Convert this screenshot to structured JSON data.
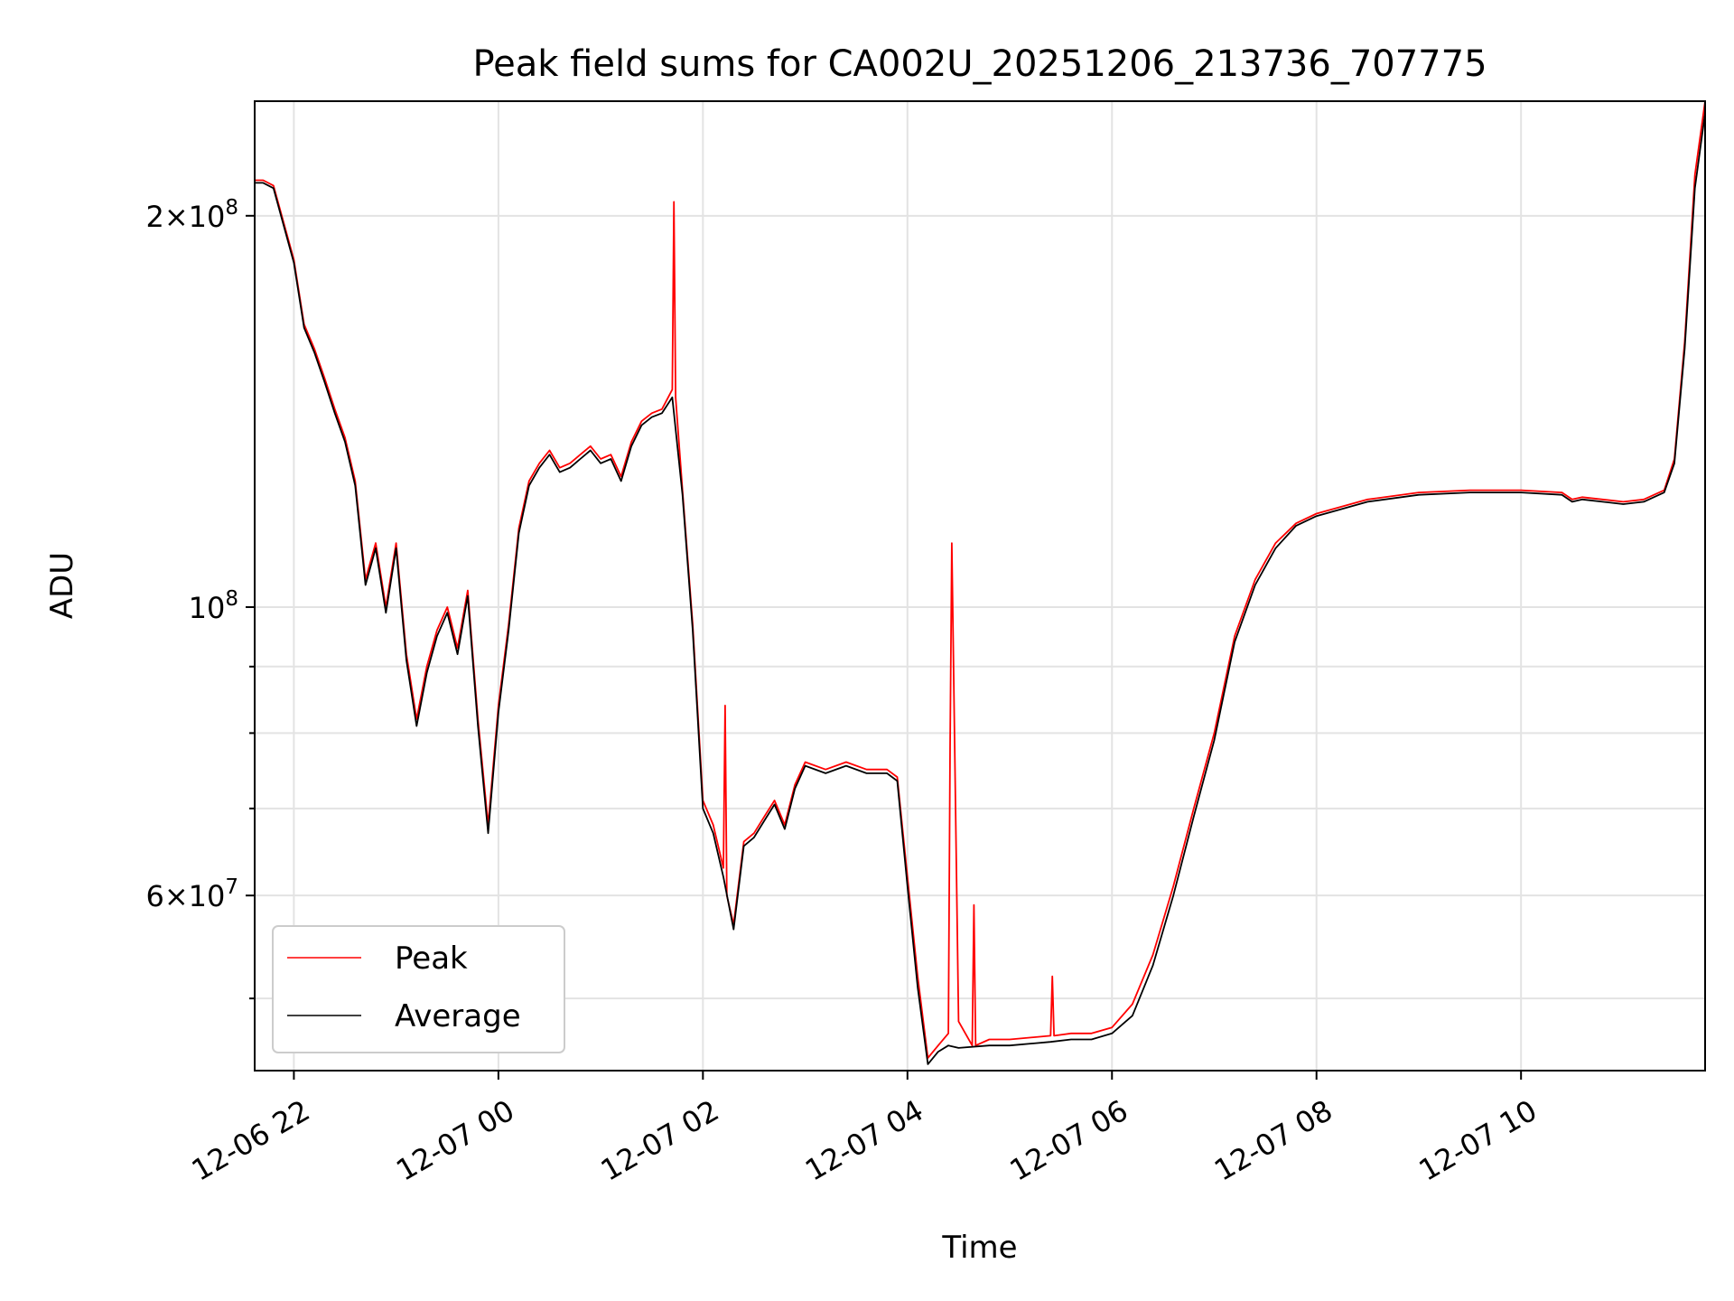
{
  "chart_data": {
    "type": "line",
    "title": "Peak field sums for CA002U_20251206_213736_707775",
    "xlabel": "Time",
    "ylabel": "ADU",
    "x_scale": "time",
    "y_scale": "log",
    "xlim": [
      "2025-12-06 21:37",
      "2025-12-07 11:48"
    ],
    "ylim": [
      44000000,
      245000000
    ],
    "x_ticks": [
      {
        "value": "2025-12-06 22:00",
        "label": "12-06 22"
      },
      {
        "value": "2025-12-07 00:00",
        "label": "12-07 00"
      },
      {
        "value": "2025-12-07 02:00",
        "label": "12-07 02"
      },
      {
        "value": "2025-12-07 04:00",
        "label": "12-07 04"
      },
      {
        "value": "2025-12-07 06:00",
        "label": "12-07 06"
      },
      {
        "value": "2025-12-07 08:00",
        "label": "12-07 08"
      },
      {
        "value": "2025-12-07 10:00",
        "label": "12-07 10"
      }
    ],
    "y_ticks_major": [
      {
        "value": 200000000,
        "base": "2",
        "exp": "8",
        "times": true
      },
      {
        "value": 100000000,
        "base": "10",
        "exp": "8",
        "times": false
      },
      {
        "value": 60000000,
        "base": "6",
        "exp": "7",
        "times": true
      }
    ],
    "y_ticks_minor": [
      50000000,
      70000000,
      80000000,
      90000000
    ],
    "grid": true,
    "legend_position": "lower-left",
    "series": [
      {
        "name": "Peak",
        "color": "#ff0000",
        "x": [
          "2025-12-06 21:37",
          "2025-12-06 21:42",
          "2025-12-06 21:48",
          "2025-12-06 22:00",
          "2025-12-06 22:06",
          "2025-12-06 22:12",
          "2025-12-06 22:18",
          "2025-12-06 22:24",
          "2025-12-06 22:30",
          "2025-12-06 22:36",
          "2025-12-06 22:42",
          "2025-12-06 22:48",
          "2025-12-06 22:54",
          "2025-12-06 23:00",
          "2025-12-06 23:06",
          "2025-12-06 23:12",
          "2025-12-06 23:18",
          "2025-12-06 23:24",
          "2025-12-06 23:30",
          "2025-12-06 23:36",
          "2025-12-06 23:42",
          "2025-12-06 23:48",
          "2025-12-06 23:54",
          "2025-12-07 00:00",
          "2025-12-07 00:06",
          "2025-12-07 00:12",
          "2025-12-07 00:18",
          "2025-12-07 00:24",
          "2025-12-07 00:30",
          "2025-12-07 00:36",
          "2025-12-07 00:42",
          "2025-12-07 00:48",
          "2025-12-07 00:54",
          "2025-12-07 01:00",
          "2025-12-07 01:06",
          "2025-12-07 01:12",
          "2025-12-07 01:18",
          "2025-12-07 01:24",
          "2025-12-07 01:30",
          "2025-12-07 01:36",
          "2025-12-07 01:42",
          "2025-12-07 01:43",
          "2025-12-07 01:44",
          "2025-12-07 01:48",
          "2025-12-07 01:54",
          "2025-12-07 02:00",
          "2025-12-07 02:06",
          "2025-12-07 02:12",
          "2025-12-07 02:13",
          "2025-12-07 02:14",
          "2025-12-07 02:18",
          "2025-12-07 02:24",
          "2025-12-07 02:30",
          "2025-12-07 02:36",
          "2025-12-07 02:42",
          "2025-12-07 02:48",
          "2025-12-07 02:54",
          "2025-12-07 03:00",
          "2025-12-07 03:12",
          "2025-12-07 03:24",
          "2025-12-07 03:36",
          "2025-12-07 03:48",
          "2025-12-07 03:54",
          "2025-12-07 04:00",
          "2025-12-07 04:06",
          "2025-12-07 04:12",
          "2025-12-07 04:18",
          "2025-12-07 04:24",
          "2025-12-07 04:25",
          "2025-12-07 04:26",
          "2025-12-07 04:30",
          "2025-12-07 04:38",
          "2025-12-07 04:39",
          "2025-12-07 04:40",
          "2025-12-07 04:48",
          "2025-12-07 05:00",
          "2025-12-07 05:24",
          "2025-12-07 05:25",
          "2025-12-07 05:26",
          "2025-12-07 05:36",
          "2025-12-07 05:48",
          "2025-12-07 06:00",
          "2025-12-07 06:12",
          "2025-12-07 06:24",
          "2025-12-07 06:36",
          "2025-12-07 06:48",
          "2025-12-07 07:00",
          "2025-12-07 07:12",
          "2025-12-07 07:24",
          "2025-12-07 07:36",
          "2025-12-07 07:48",
          "2025-12-07 08:00",
          "2025-12-07 08:30",
          "2025-12-07 09:00",
          "2025-12-07 09:30",
          "2025-12-07 10:00",
          "2025-12-07 10:24",
          "2025-12-07 10:30",
          "2025-12-07 10:36",
          "2025-12-07 11:00",
          "2025-12-07 11:12",
          "2025-12-07 11:24",
          "2025-12-07 11:30",
          "2025-12-07 11:36",
          "2025-12-07 11:42",
          "2025-12-07 11:48"
        ],
        "values": [
          213000000,
          213000000,
          211000000,
          185000000,
          165000000,
          158000000,
          150000000,
          142000000,
          135000000,
          125000000,
          105000000,
          112000000,
          100000000,
          112000000,
          92000000,
          82000000,
          90000000,
          96000000,
          100000000,
          93000000,
          103000000,
          82000000,
          68000000,
          84000000,
          97000000,
          115000000,
          125000000,
          129000000,
          132000000,
          128000000,
          129000000,
          131000000,
          133000000,
          130000000,
          131000000,
          126000000,
          134000000,
          139000000,
          141000000,
          142000000,
          147000000,
          205000000,
          145000000,
          123000000,
          97000000,
          71000000,
          68000000,
          63000000,
          84000000,
          60000000,
          57000000,
          66000000,
          67000000,
          69000000,
          71000000,
          68000000,
          73000000,
          76000000,
          75000000,
          76000000,
          75000000,
          75000000,
          74000000,
          62000000,
          52000000,
          45000000,
          46000000,
          47000000,
          78000000,
          112000000,
          48000000,
          46000000,
          59000000,
          46000000,
          46500000,
          46500000,
          46800000,
          52000000,
          46800000,
          47000000,
          47000000,
          47500000,
          49500000,
          54000000,
          61000000,
          70000000,
          80000000,
          95000000,
          105000000,
          112000000,
          116000000,
          118000000,
          121000000,
          122500000,
          123000000,
          123000000,
          122500000,
          121000000,
          121500000,
          120500000,
          121000000,
          123000000,
          130000000,
          160000000,
          215000000,
          245000000
        ]
      },
      {
        "name": "Average",
        "color": "#000000",
        "x": [
          "2025-12-06 21:37",
          "2025-12-06 21:42",
          "2025-12-06 21:48",
          "2025-12-06 22:00",
          "2025-12-06 22:06",
          "2025-12-06 22:12",
          "2025-12-06 22:18",
          "2025-12-06 22:24",
          "2025-12-06 22:30",
          "2025-12-06 22:36",
          "2025-12-06 22:42",
          "2025-12-06 22:48",
          "2025-12-06 22:54",
          "2025-12-06 23:00",
          "2025-12-06 23:06",
          "2025-12-06 23:12",
          "2025-12-06 23:18",
          "2025-12-06 23:24",
          "2025-12-06 23:30",
          "2025-12-06 23:36",
          "2025-12-06 23:42",
          "2025-12-06 23:48",
          "2025-12-06 23:54",
          "2025-12-07 00:00",
          "2025-12-07 00:06",
          "2025-12-07 00:12",
          "2025-12-07 00:18",
          "2025-12-07 00:24",
          "2025-12-07 00:30",
          "2025-12-07 00:36",
          "2025-12-07 00:42",
          "2025-12-07 00:48",
          "2025-12-07 00:54",
          "2025-12-07 01:00",
          "2025-12-07 01:06",
          "2025-12-07 01:12",
          "2025-12-07 01:18",
          "2025-12-07 01:24",
          "2025-12-07 01:30",
          "2025-12-07 01:36",
          "2025-12-07 01:42",
          "2025-12-07 01:48",
          "2025-12-07 01:54",
          "2025-12-07 02:00",
          "2025-12-07 02:06",
          "2025-12-07 02:12",
          "2025-12-07 02:18",
          "2025-12-07 02:24",
          "2025-12-07 02:30",
          "2025-12-07 02:36",
          "2025-12-07 02:42",
          "2025-12-07 02:48",
          "2025-12-07 02:54",
          "2025-12-07 03:00",
          "2025-12-07 03:12",
          "2025-12-07 03:24",
          "2025-12-07 03:36",
          "2025-12-07 03:48",
          "2025-12-07 03:54",
          "2025-12-07 04:00",
          "2025-12-07 04:06",
          "2025-12-07 04:12",
          "2025-12-07 04:18",
          "2025-12-07 04:24",
          "2025-12-07 04:30",
          "2025-12-07 04:48",
          "2025-12-07 05:00",
          "2025-12-07 05:24",
          "2025-12-07 05:36",
          "2025-12-07 05:48",
          "2025-12-07 06:00",
          "2025-12-07 06:12",
          "2025-12-07 06:24",
          "2025-12-07 06:36",
          "2025-12-07 06:48",
          "2025-12-07 07:00",
          "2025-12-07 07:12",
          "2025-12-07 07:24",
          "2025-12-07 07:36",
          "2025-12-07 07:48",
          "2025-12-07 08:00",
          "2025-12-07 08:30",
          "2025-12-07 09:00",
          "2025-12-07 09:30",
          "2025-12-07 10:00",
          "2025-12-07 10:24",
          "2025-12-07 10:30",
          "2025-12-07 10:36",
          "2025-12-07 11:00",
          "2025-12-07 11:12",
          "2025-12-07 11:24",
          "2025-12-07 11:30",
          "2025-12-07 11:36",
          "2025-12-07 11:42",
          "2025-12-07 11:48"
        ],
        "values": [
          212000000,
          212000000,
          210000000,
          184000000,
          164000000,
          157000000,
          149000000,
          141000000,
          134000000,
          124000000,
          104000000,
          111000000,
          99000000,
          111000000,
          91000000,
          81000000,
          89000000,
          95000000,
          99000000,
          92000000,
          102000000,
          81000000,
          67000000,
          83000000,
          96000000,
          114000000,
          124000000,
          128000000,
          131000000,
          127000000,
          128000000,
          130000000,
          132000000,
          129000000,
          130000000,
          125000000,
          133000000,
          138000000,
          140000000,
          141000000,
          145000000,
          122000000,
          96000000,
          70000000,
          67000000,
          62000000,
          56500000,
          65500000,
          66500000,
          68500000,
          70500000,
          67500000,
          72500000,
          75500000,
          74500000,
          75500000,
          74500000,
          74500000,
          73500000,
          61000000,
          51000000,
          44500000,
          45500000,
          46000000,
          45800000,
          46000000,
          46000000,
          46300000,
          46500000,
          46500000,
          47000000,
          48500000,
          53000000,
          60000000,
          69000000,
          79000000,
          94000000,
          104000000,
          111000000,
          115500000,
          117500000,
          120500000,
          122000000,
          122500000,
          122500000,
          122000000,
          120500000,
          121000000,
          120000000,
          120500000,
          122500000,
          129000000,
          158000000,
          210000000,
          240000000
        ]
      }
    ]
  }
}
